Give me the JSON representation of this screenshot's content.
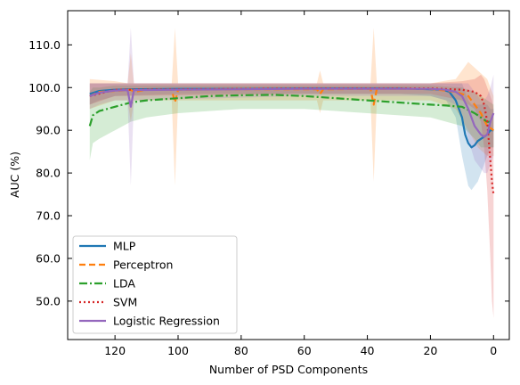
{
  "chart_data": {
    "type": "line",
    "xlabel": "Number of PSD Components",
    "ylabel": "AUC (%)",
    "xlim": [
      135,
      -5
    ],
    "ylim": [
      41,
      118
    ],
    "x_ticks": [
      120,
      100,
      80,
      60,
      40,
      20,
      0
    ],
    "x_tick_labels": [
      "120",
      "100",
      "80",
      "60",
      "40",
      "20",
      "0"
    ],
    "y_ticks": [
      50,
      60,
      70,
      80,
      90,
      100,
      110
    ],
    "y_tick_labels": [
      "50.0",
      "60.0",
      "70.0",
      "80.0",
      "90.0",
      "100.0",
      "110.0"
    ],
    "legend_position": "lower-left",
    "grid": false,
    "series": [
      {
        "name": "MLP",
        "color": "#1f77b4",
        "dash": "solid",
        "points": [
          [
            128,
            98.5
          ],
          [
            125,
            99.2
          ],
          [
            120,
            99.5
          ],
          [
            115,
            99.6
          ],
          [
            100,
            99.7
          ],
          [
            80,
            99.7
          ],
          [
            60,
            99.8
          ],
          [
            40,
            99.8
          ],
          [
            30,
            99.8
          ],
          [
            20,
            99.6
          ],
          [
            16,
            99.5
          ],
          [
            14,
            99.0
          ],
          [
            12,
            97.0
          ],
          [
            10,
            93.0
          ],
          [
            9,
            89.0
          ],
          [
            8,
            87.0
          ],
          [
            7,
            86.0
          ],
          [
            6,
            86.5
          ],
          [
            5,
            87.5
          ],
          [
            4,
            88.0
          ],
          [
            3,
            88.5
          ],
          [
            2,
            89.0
          ],
          [
            1,
            90.0
          ],
          [
            0,
            90.0
          ]
        ],
        "band": [
          [
            128,
            96,
            101
          ],
          [
            125,
            97,
            101
          ],
          [
            120,
            98,
            101
          ],
          [
            100,
            98.5,
            101
          ],
          [
            60,
            98.5,
            101
          ],
          [
            30,
            98.5,
            101
          ],
          [
            20,
            98,
            101
          ],
          [
            15,
            97,
            101
          ],
          [
            12,
            93,
            101
          ],
          [
            10,
            84,
            101
          ],
          [
            8,
            77,
            97
          ],
          [
            7,
            76,
            96
          ],
          [
            6,
            77,
            96
          ],
          [
            5,
            78,
            96
          ],
          [
            4,
            80,
            96
          ],
          [
            3,
            82,
            96
          ],
          [
            2,
            84,
            96
          ],
          [
            1,
            86,
            95
          ],
          [
            0,
            86,
            95
          ]
        ]
      },
      {
        "name": "Perceptron",
        "color": "#ff7f0e",
        "dash": "dashed",
        "points": [
          [
            128,
            98.0
          ],
          [
            125,
            99.0
          ],
          [
            118,
            99.3
          ],
          [
            115,
            99.5
          ],
          [
            114,
            99.0
          ],
          [
            110,
            99.5
          ],
          [
            102,
            99.5
          ],
          [
            101,
            96.5
          ],
          [
            100,
            99.5
          ],
          [
            80,
            99.6
          ],
          [
            56,
            99.6
          ],
          [
            55,
            98.5
          ],
          [
            54,
            99.6
          ],
          [
            39,
            99.7
          ],
          [
            38,
            96.0
          ],
          [
            37,
            99.7
          ],
          [
            20,
            99.7
          ],
          [
            12,
            99.0
          ],
          [
            8,
            98.0
          ],
          [
            6,
            96.0
          ],
          [
            4,
            94.0
          ],
          [
            2,
            91.0
          ],
          [
            0,
            90.0
          ]
        ],
        "band": [
          [
            128,
            95,
            102
          ],
          [
            120,
            97,
            101.5
          ],
          [
            116,
            97,
            101
          ],
          [
            115,
            92,
            108
          ],
          [
            114,
            97,
            101
          ],
          [
            102,
            97,
            101
          ],
          [
            101,
            77,
            114
          ],
          [
            100,
            97,
            101
          ],
          [
            56,
            97,
            101
          ],
          [
            55,
            94,
            104
          ],
          [
            54,
            97,
            101
          ],
          [
            39,
            97,
            101
          ],
          [
            38,
            78,
            114
          ],
          [
            37,
            97,
            101
          ],
          [
            20,
            97,
            101
          ],
          [
            12,
            95,
            102
          ],
          [
            8,
            90,
            106
          ],
          [
            5,
            86,
            104
          ],
          [
            2,
            84,
            102
          ],
          [
            0,
            84,
            98
          ]
        ]
      },
      {
        "name": "LDA",
        "color": "#2ca02c",
        "dash": "dashdot",
        "points": [
          [
            128,
            91.0
          ],
          [
            127,
            93.5
          ],
          [
            125,
            94.5
          ],
          [
            120,
            95.5
          ],
          [
            115,
            96.5
          ],
          [
            110,
            97.0
          ],
          [
            100,
            97.5
          ],
          [
            90,
            98.0
          ],
          [
            80,
            98.2
          ],
          [
            70,
            98.3
          ],
          [
            60,
            98.0
          ],
          [
            50,
            97.5
          ],
          [
            40,
            97.0
          ],
          [
            30,
            96.5
          ],
          [
            20,
            96.0
          ],
          [
            15,
            95.8
          ],
          [
            10,
            95.5
          ],
          [
            6,
            94.0
          ],
          [
            4,
            93.0
          ],
          [
            2,
            92.0
          ],
          [
            0,
            92.0
          ]
        ],
        "band": [
          [
            128,
            83,
            99
          ],
          [
            127,
            87,
            100
          ],
          [
            125,
            88,
            100
          ],
          [
            120,
            90,
            100.5
          ],
          [
            115,
            92,
            100.5
          ],
          [
            110,
            93,
            100.5
          ],
          [
            100,
            94,
            100.5
          ],
          [
            80,
            95,
            100.5
          ],
          [
            60,
            95,
            100.5
          ],
          [
            40,
            94,
            100.5
          ],
          [
            20,
            93,
            100.5
          ],
          [
            10,
            91,
            100
          ],
          [
            6,
            88,
            99
          ],
          [
            4,
            86,
            98
          ],
          [
            2,
            86,
            97
          ],
          [
            0,
            86,
            96
          ]
        ]
      },
      {
        "name": "SVM",
        "color": "#d62728",
        "dash": "dotted",
        "points": [
          [
            128,
            98.0
          ],
          [
            120,
            99.5
          ],
          [
            100,
            99.6
          ],
          [
            80,
            99.7
          ],
          [
            60,
            99.8
          ],
          [
            40,
            99.8
          ],
          [
            20,
            99.8
          ],
          [
            10,
            99.5
          ],
          [
            6,
            99.0
          ],
          [
            4,
            98.0
          ],
          [
            3,
            96.0
          ],
          [
            2,
            92.0
          ],
          [
            1,
            83.0
          ],
          [
            0.5,
            78.0
          ],
          [
            0,
            75.0
          ]
        ],
        "band": [
          [
            128,
            96,
            101
          ],
          [
            120,
            98,
            101
          ],
          [
            60,
            98.5,
            101
          ],
          [
            20,
            98.5,
            101
          ],
          [
            10,
            97,
            101.5
          ],
          [
            6,
            95,
            102
          ],
          [
            4,
            92,
            103
          ],
          [
            3,
            86,
            102
          ],
          [
            2,
            76,
            100
          ],
          [
            1,
            60,
            98
          ],
          [
            0.5,
            50,
            97
          ],
          [
            0,
            46,
            95
          ]
        ]
      },
      {
        "name": "Logistic Regression",
        "color": "#9467bd",
        "dash": "solid",
        "points": [
          [
            128,
            98.0
          ],
          [
            125,
            98.8
          ],
          [
            120,
            99.3
          ],
          [
            116,
            99.4
          ],
          [
            115,
            95.5
          ],
          [
            114,
            99.4
          ],
          [
            100,
            99.5
          ],
          [
            80,
            99.6
          ],
          [
            60,
            99.7
          ],
          [
            40,
            99.7
          ],
          [
            20,
            99.7
          ],
          [
            15,
            99.5
          ],
          [
            12,
            99.0
          ],
          [
            10,
            98.0
          ],
          [
            8,
            95.0
          ],
          [
            6,
            91.0
          ],
          [
            4,
            89.0
          ],
          [
            3,
            88.5
          ],
          [
            2,
            89.0
          ],
          [
            1,
            92.0
          ],
          [
            0,
            94.0
          ]
        ],
        "band": [
          [
            128,
            95,
            101
          ],
          [
            125,
            96,
            101
          ],
          [
            120,
            97,
            101
          ],
          [
            116,
            97,
            101
          ],
          [
            115,
            77,
            114
          ],
          [
            114,
            97,
            101
          ],
          [
            60,
            98,
            101
          ],
          [
            20,
            98,
            101
          ],
          [
            15,
            97,
            101
          ],
          [
            12,
            96,
            101
          ],
          [
            10,
            94,
            101
          ],
          [
            8,
            88,
            101
          ],
          [
            6,
            83,
            99
          ],
          [
            4,
            81,
            97
          ],
          [
            3,
            80,
            97
          ],
          [
            2,
            80,
            98
          ],
          [
            1,
            82,
            100
          ],
          [
            0,
            84,
            103
          ]
        ]
      }
    ]
  }
}
